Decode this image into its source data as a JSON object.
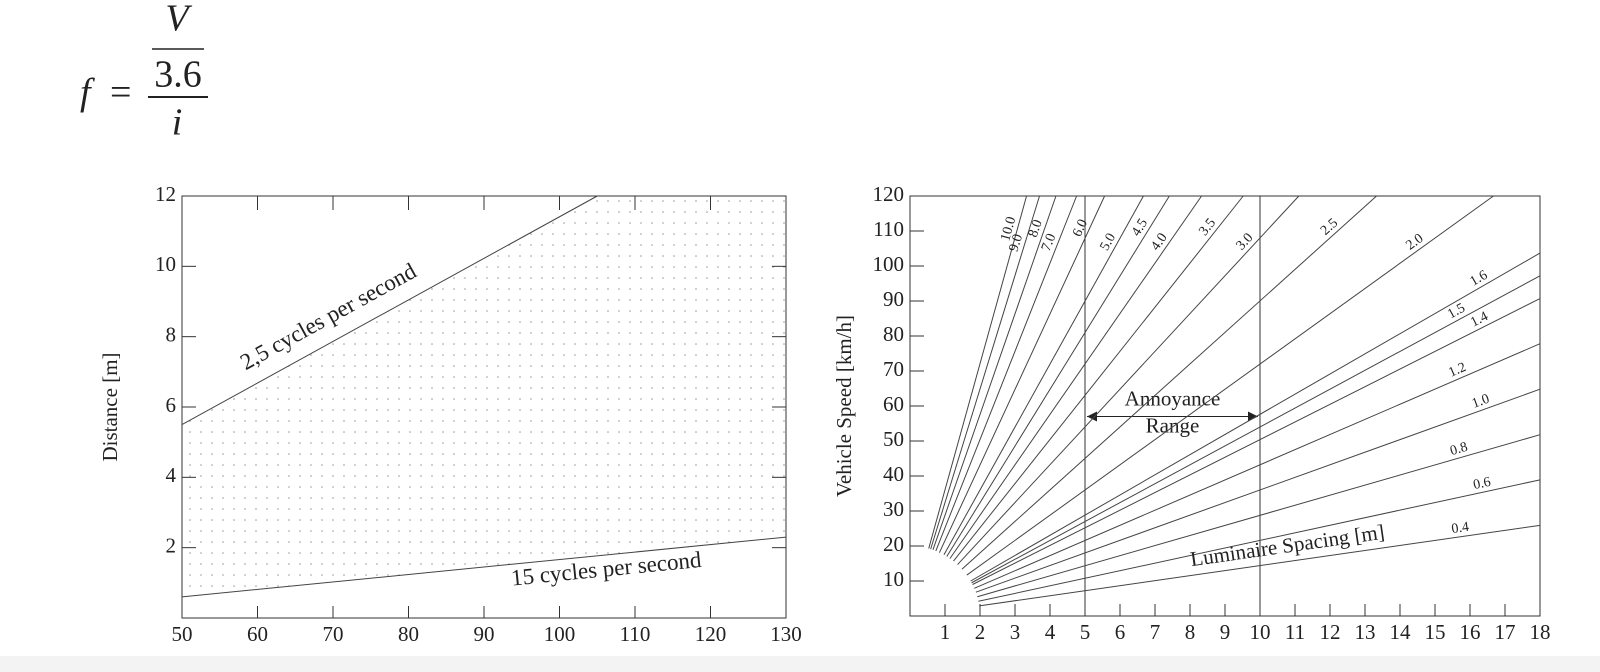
{
  "formula": {
    "lhs": "f",
    "eq": "=",
    "numerator": "V",
    "divisor": "3.6",
    "denominator": "i"
  },
  "chart_data": [
    {
      "type": "line",
      "y_label": "Distance [m]",
      "xlim": [
        50,
        130
      ],
      "xticks": [
        50,
        60,
        70,
        80,
        90,
        100,
        110,
        120,
        130
      ],
      "ylim": [
        0,
        12
      ],
      "yticks": [
        2,
        4,
        6,
        8,
        10,
        12
      ],
      "color": "#444",
      "shaded": true,
      "series": [
        {
          "name": "2,5 cycles per second",
          "x": [
            50,
            105
          ],
          "values": [
            5.5,
            12
          ]
        },
        {
          "name": "15 cycles per second",
          "x": [
            50,
            130
          ],
          "values": [
            0.6,
            2.3
          ]
        }
      ]
    },
    {
      "type": "line",
      "y_label": "Vehicle Speed [km/h]",
      "xlim": [
        0,
        18
      ],
      "xticks": [
        1,
        2,
        3,
        4,
        5,
        6,
        7,
        8,
        9,
        10,
        11,
        12,
        13,
        14,
        15,
        16,
        17,
        18
      ],
      "ylim": [
        0,
        120
      ],
      "yticks": [
        10,
        20,
        30,
        40,
        50,
        60,
        70,
        80,
        90,
        100,
        110,
        120
      ],
      "color": "#444",
      "x_caption": "Luminaire Spacing [m]",
      "range": {
        "x": [
          5,
          10
        ],
        "y": 57,
        "label": [
          "Annoyance",
          "Range"
        ]
      },
      "series": [
        {
          "name": "10.0",
          "x": [
            0.535,
            3.33
          ],
          "values": [
            19.3,
            120
          ]
        },
        {
          "name": "9.0",
          "x": [
            0.59,
            3.7
          ],
          "values": [
            19.1,
            120
          ]
        },
        {
          "name": "8.0",
          "x": [
            0.656,
            4.17
          ],
          "values": [
            18.9,
            120
          ]
        },
        {
          "name": "7.0",
          "x": [
            0.738,
            4.76
          ],
          "values": [
            18.6,
            120
          ]
        },
        {
          "name": "6.0",
          "x": [
            0.84,
            5.56
          ],
          "values": [
            18.1,
            120
          ]
        },
        {
          "name": "5.0",
          "x": [
            0.971,
            6.67
          ],
          "values": [
            17.5,
            120
          ]
        },
        {
          "name": "4.5",
          "x": [
            1.051,
            7.41
          ],
          "values": [
            17.0,
            120
          ]
        },
        {
          "name": "4.0",
          "x": [
            1.14,
            8.33
          ],
          "values": [
            16.4,
            120
          ]
        },
        {
          "name": "3.5",
          "x": [
            1.243,
            9.52
          ],
          "values": [
            15.7,
            120
          ]
        },
        {
          "name": "3.0",
          "x": [
            1.359,
            11.11
          ],
          "values": [
            14.7,
            120
          ]
        },
        {
          "name": "2.5",
          "x": [
            1.486,
            13.33
          ],
          "values": [
            13.4,
            120
          ]
        },
        {
          "name": "2.0",
          "x": [
            1.624,
            16.67
          ],
          "values": [
            11.7,
            120
          ]
        },
        {
          "name": "1.6",
          "x": [
            1.733,
            18
          ],
          "values": [
            10.0,
            103.7
          ]
        },
        {
          "name": "1.5",
          "x": [
            1.76,
            18
          ],
          "values": [
            9.5,
            97.2
          ]
        },
        {
          "name": "1.4",
          "x": [
            1.786,
            18
          ],
          "values": [
            9.0,
            90.7
          ]
        },
        {
          "name": "1.2",
          "x": [
            1.837,
            18
          ],
          "values": [
            7.9,
            77.8
          ]
        },
        {
          "name": "1.0",
          "x": [
            1.882,
            18
          ],
          "values": [
            6.8,
            64.8
          ]
        },
        {
          "name": "0.8",
          "x": [
            1.923,
            18
          ],
          "values": [
            5.5,
            51.8
          ]
        },
        {
          "name": "0.6",
          "x": [
            1.955,
            18
          ],
          "values": [
            4.2,
            38.9
          ]
        },
        {
          "name": "0.4",
          "x": [
            1.98,
            18
          ],
          "values": [
            2.9,
            25.9
          ]
        }
      ]
    }
  ]
}
